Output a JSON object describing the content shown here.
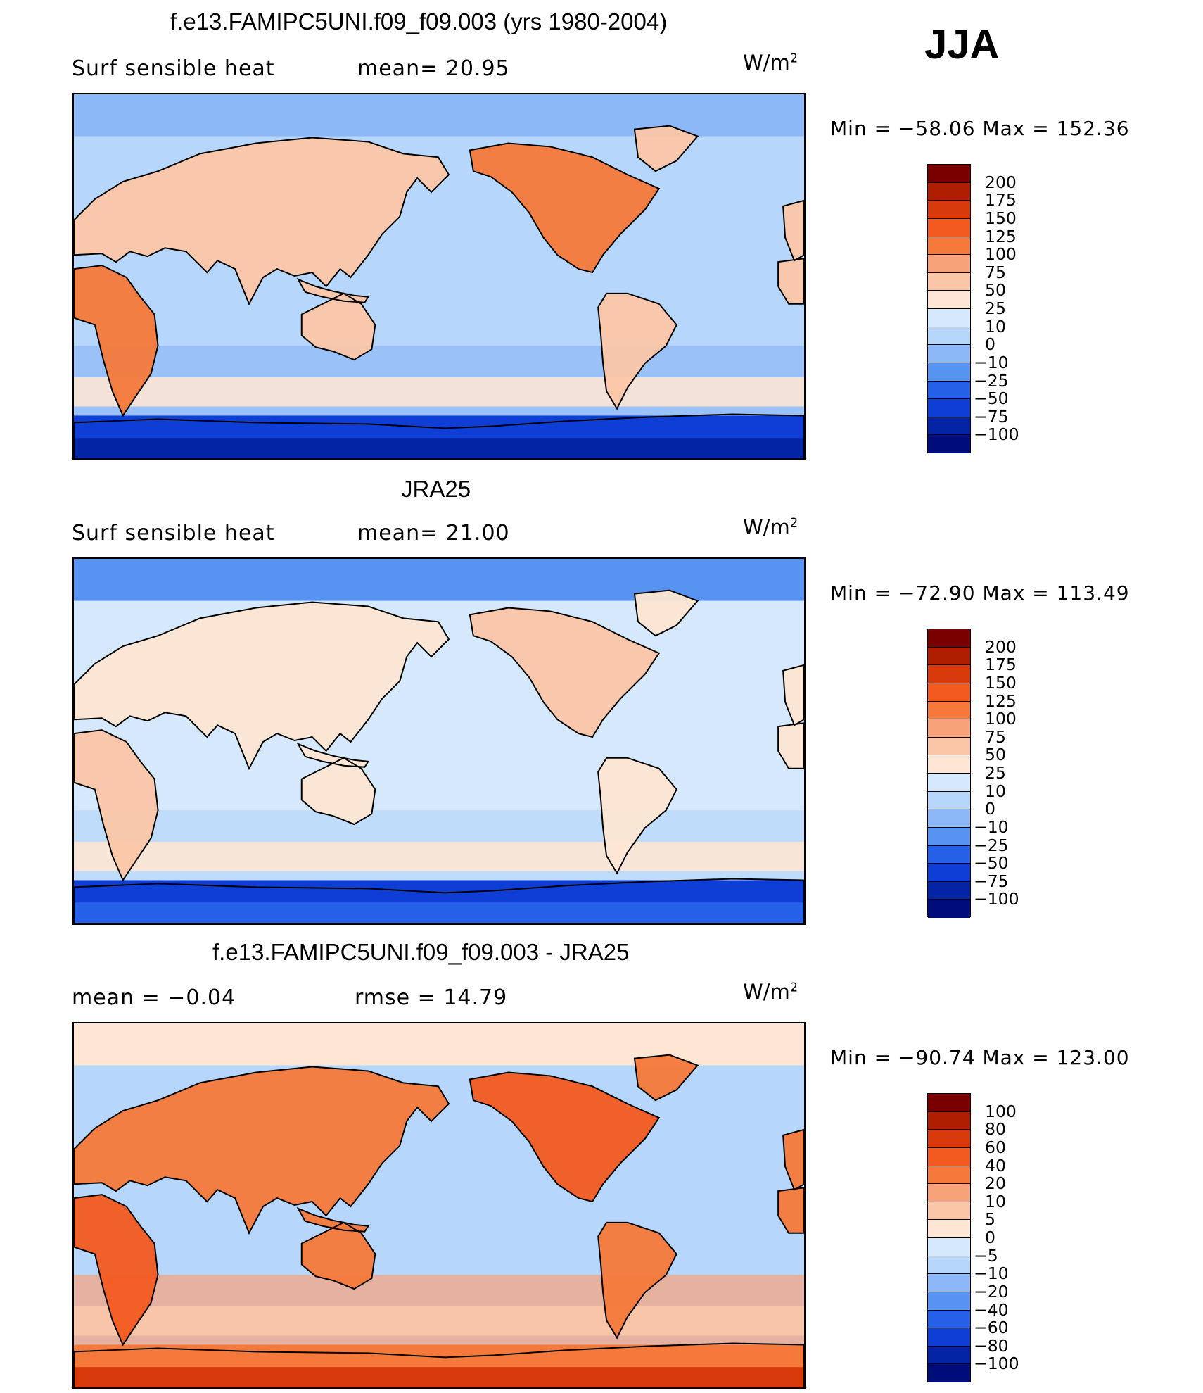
{
  "season": "JJA",
  "units_base": "W/m",
  "units_exp": "2",
  "panels": [
    {
      "title": "f.e13.FAMIPC5UNI.f09_f09.003 (yrs 1980-2004)",
      "left_label": "Surf  sensible  heat",
      "mid_label": "mean=   20.95",
      "minmax": "Min  =  −58.06  Max  =  152.36",
      "colorbar": {
        "labels": [
          "200",
          "175",
          "150",
          "125",
          "100",
          "75",
          "50",
          "25",
          "10",
          "0",
          "−10",
          "−25",
          "−50",
          "−75",
          "−100"
        ],
        "colors": [
          "#7a0000",
          "#b01e02",
          "#d93a0c",
          "#f25a1f",
          "#f4793a",
          "#f8a27a",
          "#fbc6a8",
          "#fde6d3",
          "#d6e9fc",
          "#b7d6fb",
          "#8db8f7",
          "#5793f0",
          "#2461e8",
          "#0f3ed6",
          "#0424a6",
          "#000c7a"
        ]
      },
      "field": {
        "ocean": "#b7d6fb",
        "land": "#fbc6a8",
        "land_hot": "#f4793a",
        "south_ocean": "#8db8f7",
        "polar": "#0f3ed6",
        "polar_deep": "#0424a6",
        "band": "#fde6d3",
        "arctic": "#8db8f7"
      }
    },
    {
      "title": "JRA25",
      "left_label": "Surf  sensible  heat",
      "mid_label": "mean=   21.00",
      "minmax": "Min  =  −72.90  Max  =  113.49",
      "colorbar": {
        "labels": [
          "200",
          "175",
          "150",
          "125",
          "100",
          "75",
          "50",
          "25",
          "10",
          "0",
          "−10",
          "−25",
          "−50",
          "−75",
          "−100"
        ],
        "colors": [
          "#7a0000",
          "#b01e02",
          "#d93a0c",
          "#f25a1f",
          "#f4793a",
          "#f8a27a",
          "#fbc6a8",
          "#fde6d3",
          "#d6e9fc",
          "#b7d6fb",
          "#8db8f7",
          "#5793f0",
          "#2461e8",
          "#0f3ed6",
          "#0424a6",
          "#000c7a"
        ]
      },
      "field": {
        "ocean": "#d6e9fc",
        "land": "#fde6d3",
        "land_hot": "#fbc6a8",
        "south_ocean": "#b7d6fb",
        "polar": "#0f3ed6",
        "polar_deep": "#2461e8",
        "band": "#fde6d3",
        "arctic": "#5793f0"
      }
    },
    {
      "title": "f.e13.FAMIPC5UNI.f09_f09.003 - JRA25",
      "left_label": "mean  =    −0.04",
      "mid_label": "rmse  =    14.79",
      "minmax": "Min  =  −90.74  Max  =  123.00",
      "colorbar": {
        "labels": [
          "100",
          "80",
          "60",
          "40",
          "20",
          "10",
          "5",
          "0",
          "−5",
          "−10",
          "−20",
          "−40",
          "−60",
          "−80",
          "−100"
        ],
        "colors": [
          "#7a0000",
          "#b01e02",
          "#d93a0c",
          "#f25a1f",
          "#f4793a",
          "#f8a27a",
          "#fbc6a8",
          "#fde6d3",
          "#d6e9fc",
          "#b7d6fb",
          "#8db8f7",
          "#5793f0",
          "#2461e8",
          "#0f3ed6",
          "#0424a6",
          "#000c7a"
        ]
      },
      "field": {
        "ocean": "#b7d6fb",
        "land": "#f4793a",
        "land_hot": "#f25a1f",
        "south_ocean": "#f8a27a",
        "polar": "#f4793a",
        "polar_deep": "#d93a0c",
        "band": "#fbc6a8",
        "arctic": "#fde6d3"
      }
    }
  ]
}
